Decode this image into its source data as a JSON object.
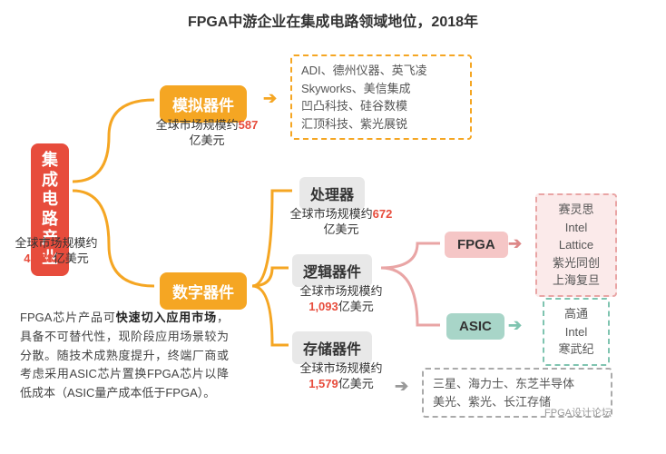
{
  "title": "FPGA中游企业在集成电路领域地位，2018年",
  "root": {
    "label": "集成电路产业",
    "caption_prefix": "全球市场规模约",
    "caption_value": "4,688",
    "caption_suffix": "亿美元"
  },
  "analog": {
    "label": "模拟器件",
    "caption_prefix": "全球市场规模约",
    "caption_value": "587",
    "caption_suffix": "亿美元",
    "companies": "ADI、德州仪器、英飞凌\nSkyworks、美信集成\n凹凸科技、硅谷数模\n汇顶科技、紫光展锐"
  },
  "digital": {
    "label": "数字器件",
    "processor": {
      "label": "处理器",
      "caption_prefix": "全球市场规模约",
      "caption_value": "672",
      "caption_suffix": "亿美元"
    },
    "logic": {
      "label": "逻辑器件",
      "caption_prefix": "全球市场规模约",
      "caption_value": "1,093",
      "caption_suffix": "亿美元"
    },
    "memory": {
      "label": "存储器件",
      "caption_prefix": "全球市场规模约",
      "caption_value": "1,579",
      "caption_suffix": "亿美元"
    }
  },
  "fpga": {
    "label": "FPGA",
    "companies": "赛灵思\nIntel\nLattice\n紫光同创\n上海复旦"
  },
  "asic": {
    "label": "ASIC",
    "companies": "高通\nIntel\n寒武纪"
  },
  "memory_companies": "三星、海力士、东芝半导体\n美光、紫光、长江存储",
  "paragraph_html": "FPGA芯片产品可<span class='b'>快速切入应用市场</span>，具备不可替代性，现阶段应用场景较为分散。随技术成熟度提升，终端厂商或考虑采用ASIC芯片置换FPGA芯片以降低成本（ASIC量产成本低于FPGA）。",
  "watermark": "FPGA设计论坛",
  "colors": {
    "red": "#e74c3c",
    "orange": "#f5a623",
    "gray_box": "#e8e8e8",
    "pink": "#f5c6c6",
    "teal": "#a8d5c8",
    "connector": "#f5a623",
    "connector_gray": "#bbbbbb",
    "connector_pink": "#e9a5a5"
  }
}
